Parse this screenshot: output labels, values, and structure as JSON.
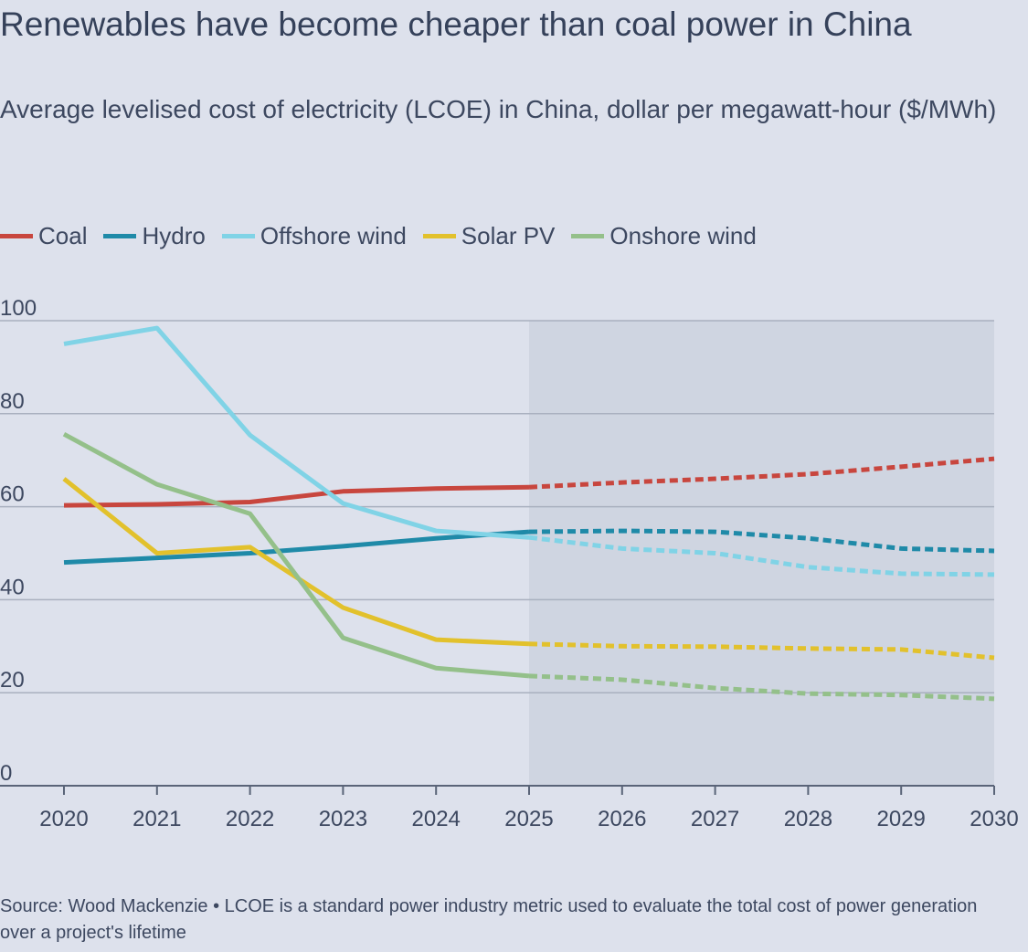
{
  "title": "Renewables have become cheaper than coal power in China",
  "subtitle": "Average levelised cost of electricity (LCOE) in China, dollar per megawatt-hour ($/MWh)",
  "source": "Source: Wood Mackenzie • LCOE is a standard power industry metric used to evaluate the total cost of power generation over a project's lifetime",
  "chart_data": {
    "type": "line",
    "title": "Renewables have become cheaper than coal power in China",
    "ylabel": "$/MWh",
    "xlabel": "",
    "x": [
      2020,
      2021,
      2022,
      2023,
      2024,
      2025,
      2026,
      2027,
      2028,
      2029,
      2030
    ],
    "ylim": [
      0,
      100
    ],
    "yticks": [
      0,
      20,
      40,
      60,
      80,
      100
    ],
    "grid": true,
    "legend": "top-left",
    "forecast_start": 2025,
    "series": [
      {
        "name": "Coal",
        "color": "#c8463e",
        "values": [
          60.3,
          60.5,
          61,
          63.3,
          63.9,
          64.2,
          65.2,
          66,
          67,
          68.6,
          70.3
        ]
      },
      {
        "name": "Hydro",
        "color": "#1f8aa8",
        "values": [
          48,
          49,
          50,
          51.5,
          53.2,
          54.6,
          54.8,
          54.6,
          53.2,
          51,
          50.5
        ]
      },
      {
        "name": "Offshore wind",
        "color": "#80d3e6",
        "values": [
          95,
          98.4,
          75.4,
          60.7,
          54.8,
          53.4,
          51,
          50,
          47,
          45.6,
          45.4
        ]
      },
      {
        "name": "Solar PV",
        "color": "#e2c12c",
        "values": [
          66,
          50,
          51.3,
          38.3,
          31.4,
          30.5,
          30,
          29.9,
          29.5,
          29.3,
          27.5
        ]
      },
      {
        "name": "Onshore wind",
        "color": "#94c08a",
        "values": [
          75.6,
          64.8,
          58.5,
          31.8,
          25.3,
          23.6,
          22.8,
          21,
          19.8,
          19.5,
          18.7
        ]
      }
    ]
  }
}
